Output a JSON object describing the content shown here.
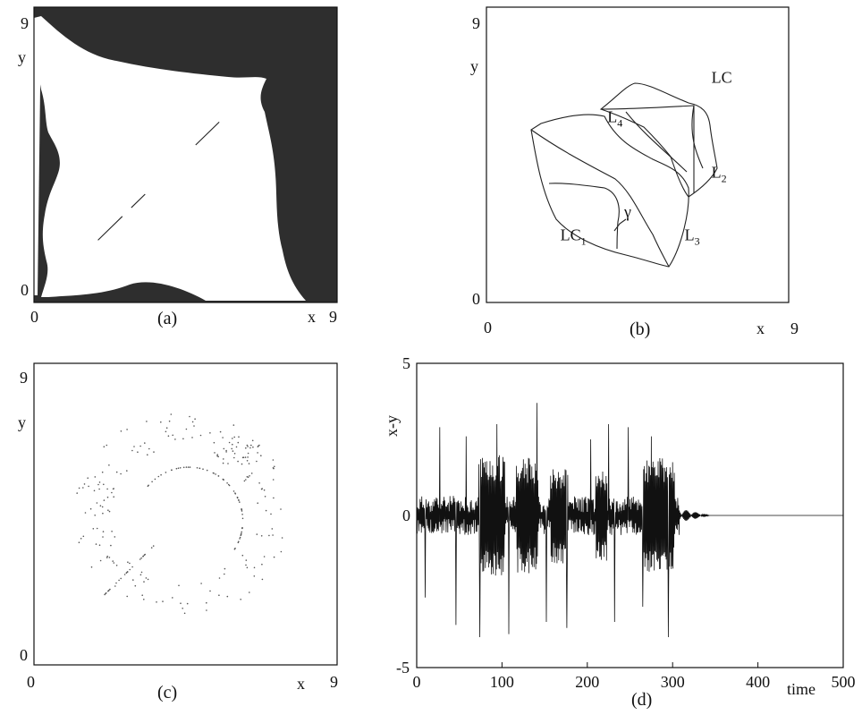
{
  "chart_data": [
    {
      "id": "a",
      "type": "heatmap",
      "panel_label": "(a)",
      "xlabel": "x",
      "ylabel": "y",
      "xlim": [
        0,
        9
      ],
      "ylim": [
        0,
        9
      ],
      "x_ticks": [
        "0",
        "9"
      ],
      "y_ticks": [
        "0",
        "9"
      ],
      "regions": [
        {
          "fill": "dark",
          "description": "basin of attraction shown dark along edges and corners"
        },
        {
          "fill": "white",
          "description": "central basin"
        }
      ],
      "diagonal_segments": [
        {
          "x": [
            1.9,
            3.3
          ],
          "y": [
            1.9,
            3.3
          ]
        },
        {
          "x": [
            4.8,
            5.5
          ],
          "y": [
            4.8,
            5.5
          ]
        }
      ]
    },
    {
      "id": "b",
      "type": "line",
      "panel_label": "(b)",
      "xlabel": "x",
      "ylabel": "y",
      "xlim": [
        0,
        9
      ],
      "ylim": [
        0,
        9
      ],
      "x_ticks": [
        "0",
        "9"
      ],
      "y_ticks": [
        "0",
        "9"
      ],
      "annotations": [
        {
          "text": "LC",
          "x": 6.7,
          "y": 6.7
        },
        {
          "text": "L",
          "sub": "4",
          "x": 3.6,
          "y": 5.5
        },
        {
          "text": "L",
          "sub": "2",
          "x": 6.7,
          "y": 3.8
        },
        {
          "text": "γ",
          "x": 4.1,
          "y": 2.6
        },
        {
          "text": "LC",
          "sub": "1",
          "x": 2.2,
          "y": 1.9
        },
        {
          "text": "L",
          "sub": "3",
          "x": 5.9,
          "y": 1.9
        }
      ]
    },
    {
      "id": "c",
      "type": "scatter",
      "panel_label": "(c)",
      "xlabel": "x",
      "ylabel": "y",
      "xlim": [
        0,
        9
      ],
      "ylim": [
        0,
        9
      ],
      "x_ticks": [
        "0",
        "9"
      ],
      "y_ticks": [
        "0",
        "9"
      ]
    },
    {
      "id": "d",
      "type": "line",
      "panel_label": "(d)",
      "xlabel": "time",
      "ylabel": "x-y",
      "xlim": [
        0,
        500
      ],
      "ylim": [
        -5,
        5
      ],
      "x_ticks": [
        "0",
        "100",
        "200",
        "300",
        "400",
        "500"
      ],
      "y_ticks": [
        "-5",
        "0",
        "5"
      ],
      "spikes": [
        {
          "t": 10,
          "v": -2.7
        },
        {
          "t": 27,
          "v": 2.9
        },
        {
          "t": 46,
          "v": -3.6
        },
        {
          "t": 58,
          "v": 2.6
        },
        {
          "t": 74,
          "v": -4.0
        },
        {
          "t": 94,
          "v": 3.0
        },
        {
          "t": 108,
          "v": -3.9
        },
        {
          "t": 141,
          "v": 3.7
        },
        {
          "t": 152,
          "v": -3.5
        },
        {
          "t": 176,
          "v": -3.7
        },
        {
          "t": 204,
          "v": 2.5
        },
        {
          "t": 225,
          "v": 3.0
        },
        {
          "t": 232,
          "v": -3.5
        },
        {
          "t": 248,
          "v": 2.9
        },
        {
          "t": 265,
          "v": -3.0
        },
        {
          "t": 275,
          "v": 2.6
        },
        {
          "t": 295,
          "v": -4.0
        }
      ],
      "bursts": [
        {
          "t0": 73,
          "t1": 103,
          "amp": 2.0
        },
        {
          "t0": 117,
          "t1": 142,
          "amp": 1.9
        },
        {
          "t0": 157,
          "t1": 177,
          "amp": 1.6
        },
        {
          "t0": 210,
          "t1": 223,
          "amp": 1.5
        },
        {
          "t0": 265,
          "t1": 302,
          "amp": 1.9
        }
      ],
      "decay_end": 345,
      "steady_value": 0
    }
  ]
}
